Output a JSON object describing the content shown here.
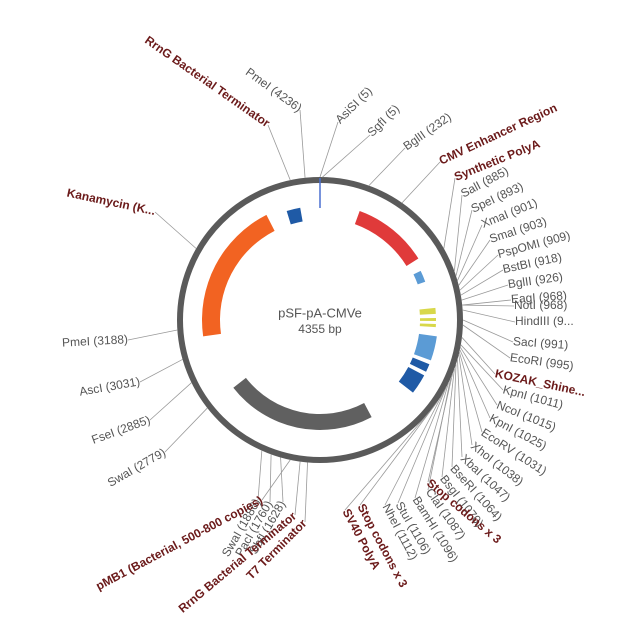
{
  "title": "pSF-pA-CMVe",
  "size": "4355 bp",
  "sites": [
    "PmeI (4236)",
    "AsiSI (5)",
    "SgfI (5)",
    "BglII (232)",
    "SalI (885)",
    "SpeI (893)",
    "XmaI (901)",
    "SmaI (903)",
    "PspOMI (909)",
    "BstBI (918)",
    "BglII (926)",
    "EagI (968)",
    "NotI (968)",
    "HindIII (9...",
    "SacI (991)",
    "EcoRI (995)",
    "KpnI (1011)",
    "NcoI (1015)",
    "KpnI (1025)",
    "EcoRV (1031)",
    "XhoI (1038)",
    "XbaI (1047)",
    "BseRI (1064)",
    "BsgI (1070)",
    "ClaI (1087)",
    "BamHI (1096)",
    "StuI (1106)",
    "NheI (1112)",
    "SbfI (1628)",
    "PacI (1760)",
    "SwaI (1886)",
    "SwaI (2779)",
    "FseI (2885)",
    "AscI (3031)",
    "PmeI (3188)"
  ],
  "features": [
    "RrnG Bacterial Terminator",
    "CMV Enhancer Region",
    "Synthetic PolyA",
    "KOZAK_Shine...",
    "Stop codons x 3",
    "Stop codons x 3",
    "SV40 PolyA",
    "T7 Terminator",
    "RrnG Bacterial Terminator",
    "pMB1 (Bacterial, 500-800 copies)",
    "Kanamycin (K..."
  ]
}
